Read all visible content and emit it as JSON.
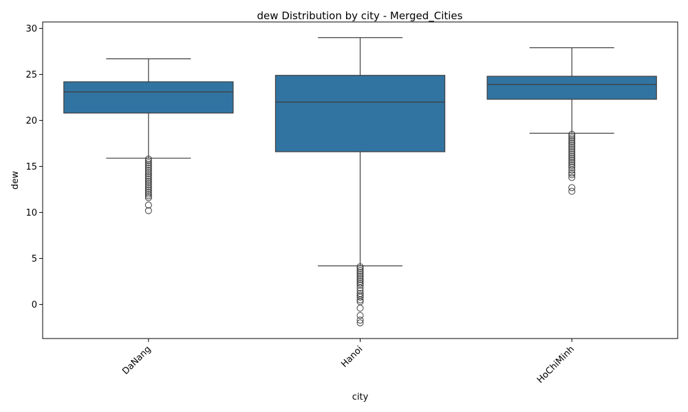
{
  "chart_data": {
    "type": "box",
    "title": "dew Distribution by city - Merged_Cities",
    "xlabel": "city",
    "ylabel": "dew",
    "ylim": [
      -3.7,
      30.7
    ],
    "yticks": [
      0,
      5,
      10,
      15,
      20,
      25,
      30
    ],
    "grid": false,
    "box_color": "#3274a1",
    "line_color": "#3d3d3d",
    "categories": [
      "DaNang",
      "Hanoi",
      "HoChiMinh"
    ],
    "boxes": [
      {
        "category": "DaNang",
        "whisker_low": 15.9,
        "q1": 20.8,
        "median": 23.1,
        "q3": 24.2,
        "whisker_high": 26.7,
        "outliers": [
          15.8,
          15.6,
          15.4,
          15.2,
          15.0,
          14.8,
          14.6,
          14.4,
          14.2,
          14.0,
          13.8,
          13.6,
          13.4,
          13.2,
          13.0,
          12.8,
          12.6,
          12.4,
          12.2,
          12.0,
          11.8,
          11.6,
          10.8,
          10.2
        ]
      },
      {
        "category": "Hanoi",
        "whisker_low": 4.2,
        "q1": 16.6,
        "median": 22.0,
        "q3": 24.9,
        "whisker_high": 29.0,
        "outliers": [
          4.1,
          3.9,
          3.7,
          3.5,
          3.3,
          3.1,
          2.9,
          2.7,
          2.5,
          2.3,
          2.1,
          1.8,
          1.5,
          1.2,
          1.0,
          0.8,
          0.5,
          0.3,
          -0.4,
          -1.2,
          -1.7,
          -2.0
        ]
      },
      {
        "category": "HoChiMinh",
        "whisker_low": 18.6,
        "q1": 22.3,
        "median": 23.9,
        "q3": 24.8,
        "whisker_high": 27.9,
        "outliers": [
          18.5,
          18.3,
          18.1,
          17.9,
          17.7,
          17.5,
          17.3,
          17.1,
          16.9,
          16.7,
          16.5,
          16.3,
          16.1,
          15.9,
          15.7,
          15.5,
          15.3,
          15.1,
          14.9,
          14.6,
          14.3,
          14.1,
          13.8,
          12.7,
          12.3
        ]
      }
    ]
  }
}
